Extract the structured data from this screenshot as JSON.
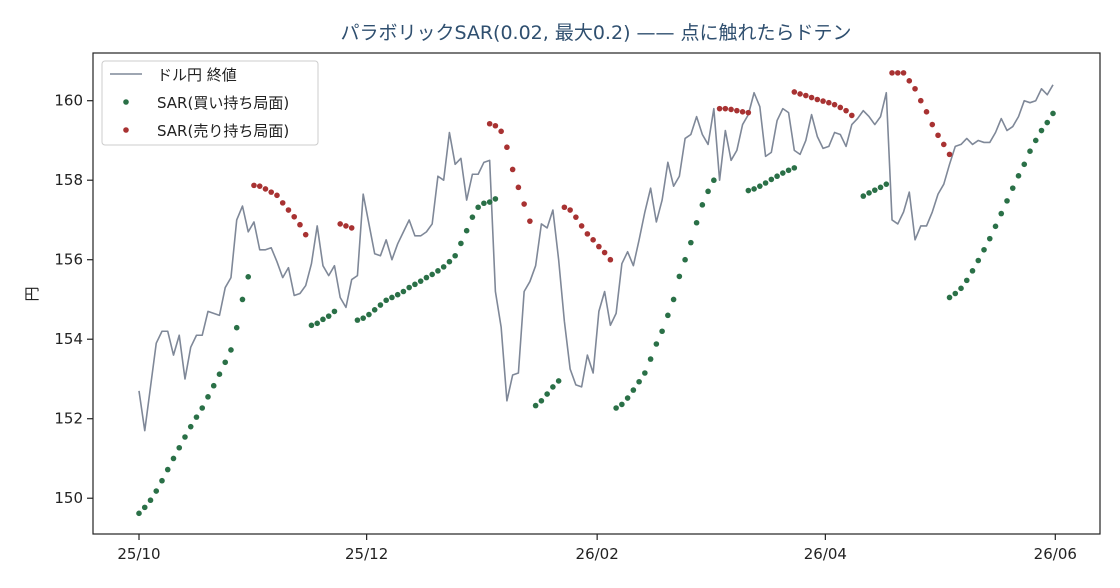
{
  "chart_data": {
    "type": "line",
    "title": "パラボリックSAR(0.02, 最大0.2) —— 点に触れたらドテン",
    "xlabel": "",
    "ylabel": "円",
    "ylim": [
      149.1,
      161.2
    ],
    "yticks": [
      150,
      152,
      154,
      156,
      158,
      160
    ],
    "xtick_labels": [
      "25/10",
      "25/12",
      "26/02",
      "26/04",
      "26/06"
    ],
    "x_count": 160,
    "xtick_indices": [
      0,
      39.6,
      79.7,
      119.4,
      159.4
    ],
    "grid": false,
    "legend_position": "top-left",
    "colors": {
      "price": "#7f8898",
      "long": "#2a7047",
      "short": "#a83232",
      "title": "#2f4f6f"
    },
    "series": [
      {
        "name": "ドル円 終値",
        "kind": "line",
        "values": [
          152.7,
          151.7,
          152.8,
          153.9,
          154.2,
          154.2,
          153.6,
          154.1,
          153.0,
          153.8,
          154.1,
          154.1,
          154.7,
          154.65,
          154.6,
          155.3,
          155.55,
          157.0,
          157.35,
          156.7,
          156.95,
          156.25,
          156.25,
          156.3,
          155.95,
          155.55,
          155.8,
          155.1,
          155.15,
          155.35,
          155.9,
          156.85,
          155.85,
          155.6,
          155.85,
          155.05,
          154.8,
          155.5,
          155.6,
          157.65,
          156.9,
          156.15,
          156.1,
          156.5,
          156.0,
          156.4,
          156.7,
          157.0,
          156.6,
          156.6,
          156.7,
          156.9,
          158.1,
          158.0,
          159.2,
          158.4,
          158.55,
          157.5,
          158.15,
          158.15,
          158.45,
          158.5,
          155.2,
          154.3,
          152.45,
          153.1,
          153.15,
          155.2,
          155.45,
          155.85,
          156.9,
          156.8,
          157.25,
          156.0,
          154.45,
          153.25,
          152.85,
          152.8,
          153.6,
          153.15,
          154.7,
          155.2,
          154.35,
          154.65,
          155.9,
          156.2,
          155.85,
          156.5,
          157.2,
          157.8,
          156.95,
          157.5,
          158.45,
          157.85,
          158.1,
          159.05,
          159.15,
          159.6,
          159.15,
          158.9,
          159.8,
          158.0,
          159.25,
          158.5,
          158.75,
          159.4,
          159.65,
          160.2,
          159.85,
          158.6,
          158.7,
          159.5,
          159.8,
          159.7,
          158.75,
          158.65,
          159.0,
          159.65,
          159.1,
          158.8,
          158.85,
          159.2,
          159.15,
          158.85,
          159.4,
          159.55,
          159.75,
          159.6,
          159.4,
          159.6,
          160.2,
          157.0,
          156.9,
          157.2,
          157.7,
          156.5,
          156.85,
          156.85,
          157.2,
          157.65,
          157.9,
          158.4,
          158.85,
          158.9,
          159.05,
          158.9,
          159.0,
          158.95,
          158.95,
          159.2,
          159.55,
          159.25,
          159.35,
          159.6,
          160.0,
          159.95,
          160.0,
          160.3,
          160.15,
          160.4
        ]
      },
      {
        "name": "SAR(買い持ち局面)",
        "kind": "dots",
        "segments": [
          {
            "start": 0,
            "values": [
              149.62,
              149.77,
              149.95,
              150.18,
              150.44,
              150.72,
              151.0,
              151.27,
              151.54,
              151.8,
              152.04,
              152.27,
              152.55,
              152.83,
              153.12,
              153.42,
              153.73,
              154.29,
              155.0,
              155.57
            ]
          },
          {
            "start": 30,
            "values": [
              154.35,
              154.4,
              154.5,
              154.58,
              154.7
            ]
          },
          {
            "start": 38,
            "values": [
              154.48,
              154.53,
              154.62,
              154.74,
              154.86,
              154.98,
              155.05,
              155.12,
              155.2,
              155.3,
              155.38,
              155.46,
              155.55,
              155.63,
              155.72,
              155.82,
              155.95,
              156.1,
              156.41,
              156.73,
              157.07,
              157.32,
              157.42,
              157.45,
              157.53
            ]
          },
          {
            "start": 69,
            "values": [
              152.33,
              152.45,
              152.62,
              152.8,
              152.95
            ]
          },
          {
            "start": 83,
            "values": [
              152.27,
              152.36,
              152.52,
              152.72,
              152.93,
              153.15,
              153.5,
              153.88,
              154.2,
              154.6,
              155.0,
              155.58,
              156.0,
              156.43,
              156.93,
              157.38,
              157.72,
              158.0
            ]
          },
          {
            "start": 106,
            "values": [
              157.74,
              157.78,
              157.85,
              157.93,
              158.02,
              158.1,
              158.18,
              158.25,
              158.31
            ]
          },
          {
            "start": 126,
            "values": [
              157.6,
              157.68,
              157.75,
              157.82,
              157.9
            ]
          },
          {
            "start": 141,
            "values": [
              155.05,
              155.15,
              155.28,
              155.48,
              155.72,
              155.98,
              156.25,
              156.53,
              156.84,
              157.16,
              157.48,
              157.8,
              158.11,
              158.4,
              158.73,
              159.0,
              159.25,
              159.45,
              159.68
            ]
          }
        ]
      },
      {
        "name": "SAR(売り持ち局面)",
        "kind": "dots",
        "segments": [
          {
            "start": 20,
            "values": [
              157.87,
              157.85,
              157.78,
              157.7,
              157.62,
              157.43,
              157.25,
              157.08,
              156.88,
              156.63
            ]
          },
          {
            "start": 35,
            "values": [
              156.9,
              156.85,
              156.8
            ]
          },
          {
            "start": 61,
            "values": [
              159.42,
              159.37,
              159.23,
              158.83,
              158.27,
              157.82,
              157.4,
              156.97
            ]
          },
          {
            "start": 74,
            "values": [
              157.32,
              157.25,
              157.07,
              156.85,
              156.65,
              156.5,
              156.33,
              156.18,
              156.0
            ]
          },
          {
            "start": 101,
            "values": [
              159.8,
              159.8,
              159.78,
              159.75,
              159.72,
              159.7
            ]
          },
          {
            "start": 114,
            "values": [
              160.22,
              160.17,
              160.13,
              160.08,
              160.03,
              159.99,
              159.95,
              159.9,
              159.83,
              159.75,
              159.63
            ]
          },
          {
            "start": 131,
            "values": [
              160.7,
              160.7,
              160.7,
              160.5,
              160.3,
              160.0,
              159.72,
              159.4,
              159.13,
              158.9,
              158.65
            ]
          }
        ]
      }
    ]
  }
}
